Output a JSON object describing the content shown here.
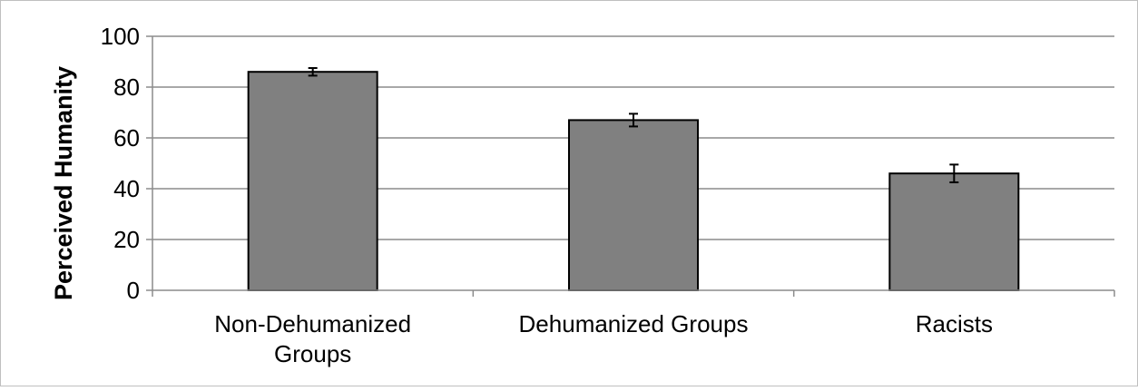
{
  "chart_data": {
    "type": "bar",
    "title": "",
    "xlabel": "",
    "ylabel": "Perceived Humanity",
    "categories": [
      [
        "Non-Dehumanized",
        "Groups"
      ],
      [
        "Dehumanized Groups"
      ],
      [
        "Racists"
      ]
    ],
    "values": [
      86,
      67,
      46
    ],
    "error": [
      1.5,
      2.5,
      3.5
    ],
    "ylim": [
      0,
      100
    ],
    "yticks": [
      0,
      20,
      40,
      60,
      80,
      100
    ],
    "grid": true,
    "bar_color": "#808080",
    "bar_edge_color": "#000000",
    "grid_color": "#8c8c8c",
    "axis_color": "#8c8c8c"
  }
}
